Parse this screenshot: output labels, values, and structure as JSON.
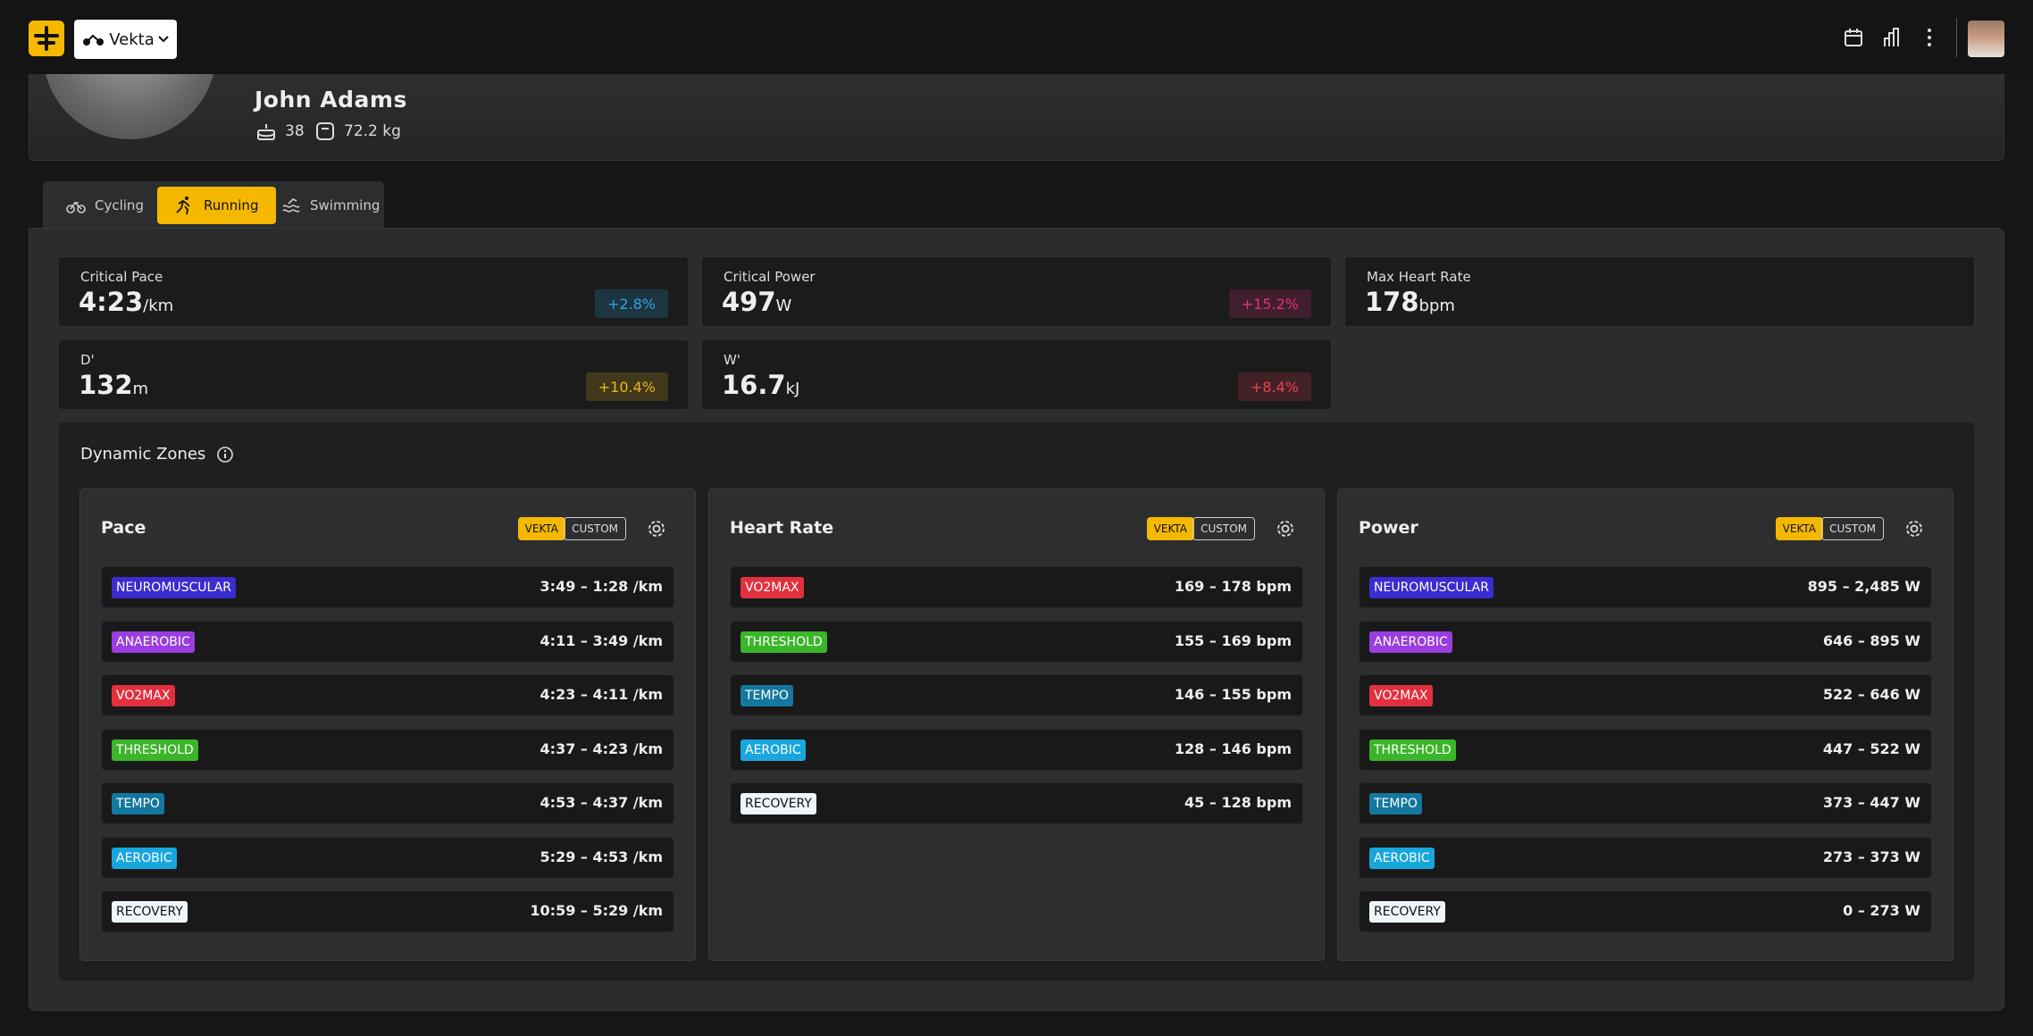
{
  "header": {
    "brand": "Vekta"
  },
  "profile": {
    "name": "John Adams",
    "age": "38",
    "weight": "72.2 kg"
  },
  "tabs": [
    "Cycling",
    "Running",
    "Swimming"
  ],
  "metrics": [
    {
      "label": "Critical Pace",
      "value": "4:23",
      "unit": "/km",
      "change": "+2.8%",
      "color": "#2ba4e6"
    },
    {
      "label": "Critical Power",
      "value": "497",
      "unit": "W",
      "change": "+15.2%",
      "color": "#e0327c"
    },
    {
      "label": "Max Heart Rate",
      "value": "178",
      "unit": "bpm"
    },
    {
      "label": "D'",
      "value": "132",
      "unit": "m",
      "change": "+10.4%",
      "color": "#e8b818"
    },
    {
      "label": "W'",
      "value": "16.7",
      "unit": "kJ",
      "change": "+8.4%",
      "color": "#ea4252"
    }
  ],
  "zones": {
    "title": "Dynamic Zones",
    "panels": [
      {
        "title": "Pace",
        "badges": [
          "VEKTA",
          "CUSTOM"
        ],
        "rows": [
          {
            "name": "NEUROMUSCULAR",
            "range": "3:49 – 1:28 /km",
            "color": "#3a2ccf"
          },
          {
            "name": "ANAEROBIC",
            "range": "4:11 – 3:49 /km",
            "color": "#9a3de0"
          },
          {
            "name": "VO2MAX",
            "range": "4:23 – 4:11 /km",
            "color": "#e2303e"
          },
          {
            "name": "THRESHOLD",
            "range": "4:37 – 4:23 /km",
            "color": "#3bb52a"
          },
          {
            "name": "TEMPO",
            "range": "4:53 – 4:37 /km",
            "color": "#14779f"
          },
          {
            "name": "AEROBIC",
            "range": "5:29 – 4:53 /km",
            "color": "#18a6dd"
          },
          {
            "name": "RECOVERY",
            "range": "10:59 – 5:29 /km",
            "color": "#eef6fb"
          }
        ]
      },
      {
        "title": "Heart Rate",
        "badges": [
          "VEKTA",
          "CUSTOM"
        ],
        "rows": [
          {
            "name": "VO2MAX",
            "range": "169 – 178 bpm",
            "color": "#e2303e"
          },
          {
            "name": "THRESHOLD",
            "range": "155 – 169 bpm",
            "color": "#3bb52a"
          },
          {
            "name": "TEMPO",
            "range": "146 – 155 bpm",
            "color": "#14779f"
          },
          {
            "name": "AEROBIC",
            "range": "128 – 146 bpm",
            "color": "#18a6dd"
          },
          {
            "name": "RECOVERY",
            "range": "45 – 128 bpm",
            "color": "#eef6fb"
          }
        ]
      },
      {
        "title": "Power",
        "badges": [
          "VEKTA",
          "CUSTOM"
        ],
        "rows": [
          {
            "name": "NEUROMUSCULAR",
            "range": "895 – 2,485 W",
            "color": "#3a2ccf"
          },
          {
            "name": "ANAEROBIC",
            "range": "646 – 895 W",
            "color": "#9a3de0"
          },
          {
            "name": "VO2MAX",
            "range": "522 – 646 W",
            "color": "#e2303e"
          },
          {
            "name": "THRESHOLD",
            "range": "447 – 522 W",
            "color": "#3bb52a"
          },
          {
            "name": "TEMPO",
            "range": "373 – 447 W",
            "color": "#14779f"
          },
          {
            "name": "AEROBIC",
            "range": "273 – 373 W",
            "color": "#18a6dd"
          },
          {
            "name": "RECOVERY",
            "range": "0 – 273 W",
            "color": "#eef6fb"
          }
        ]
      }
    ]
  }
}
